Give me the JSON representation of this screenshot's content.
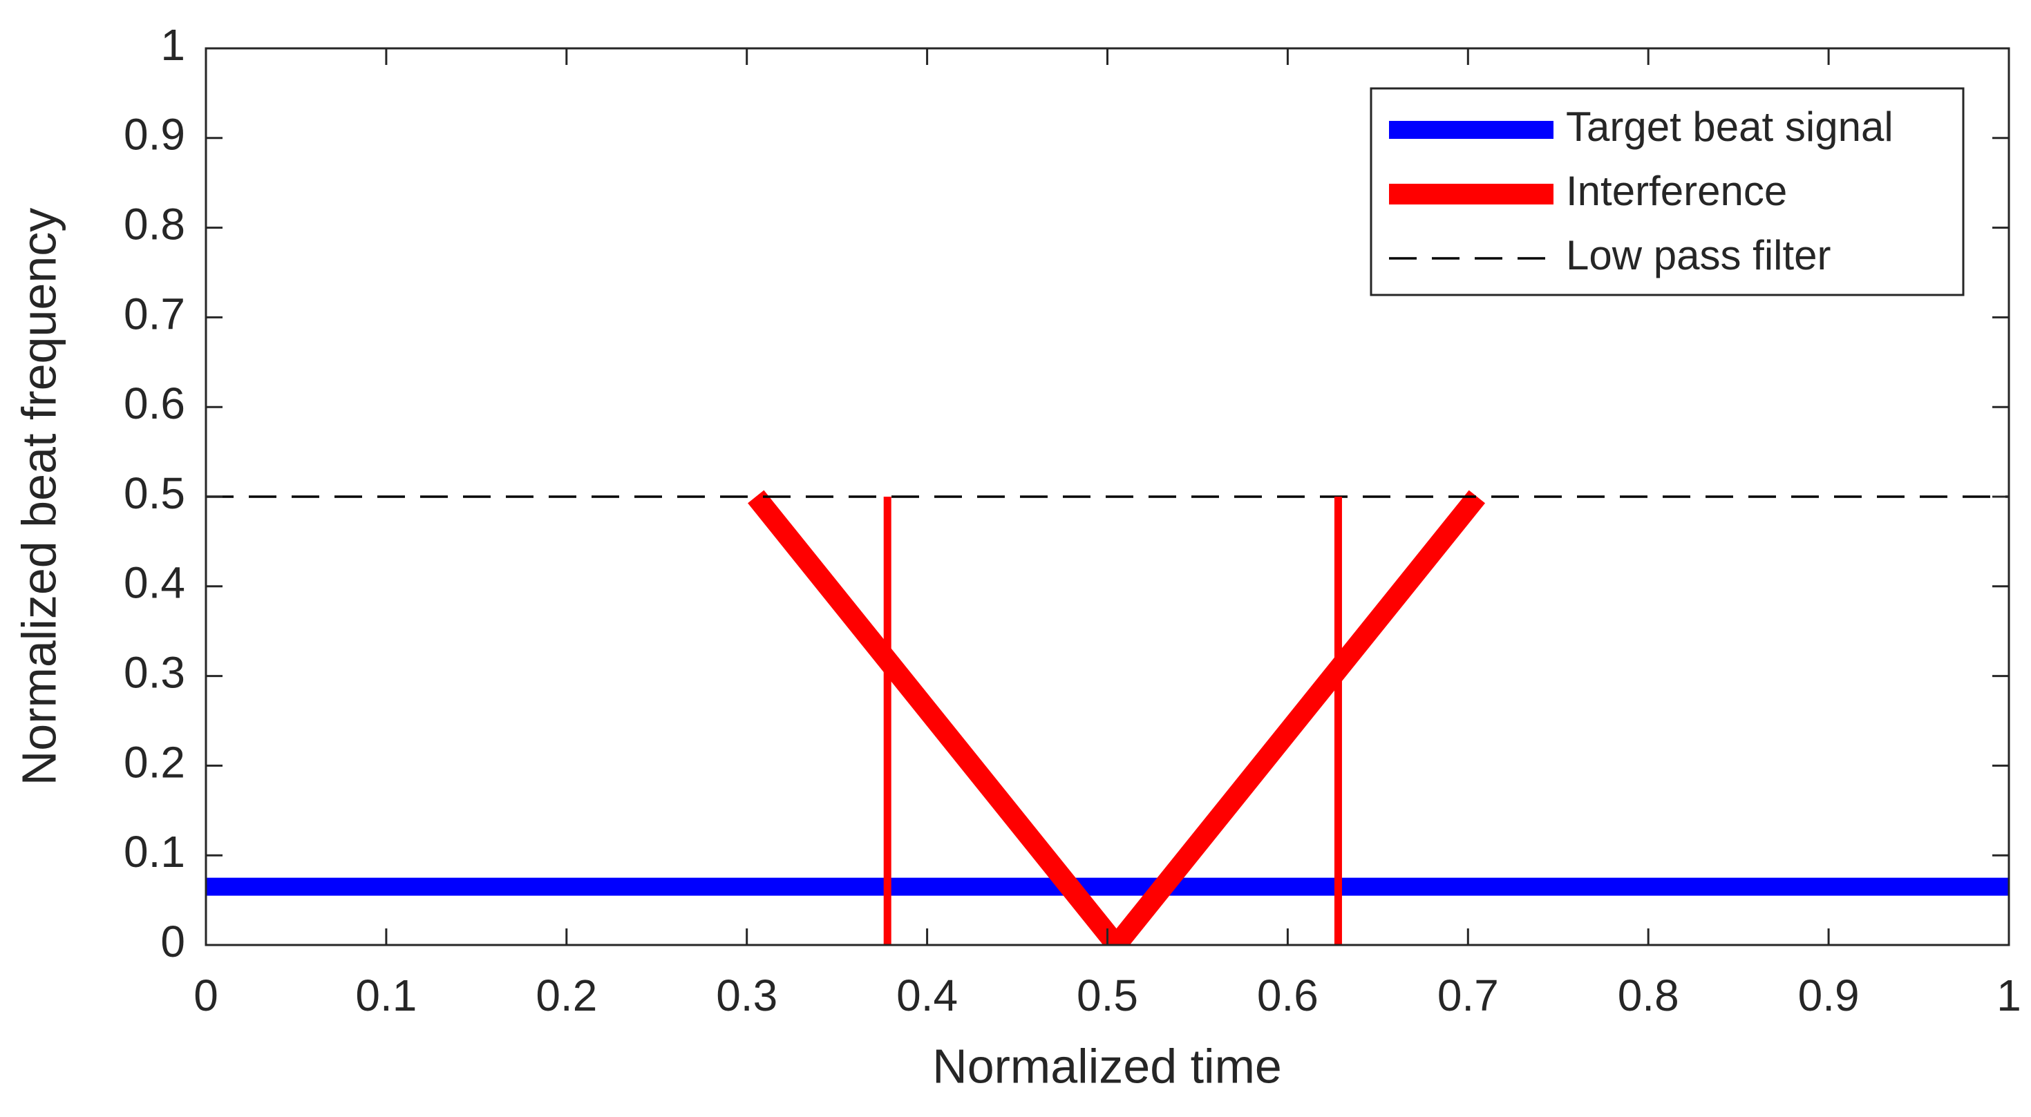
{
  "chart_data": {
    "type": "line",
    "xlabel": "Normalized time",
    "ylabel": "Normalized beat frequency",
    "xlim": [
      0,
      1
    ],
    "ylim": [
      0,
      1
    ],
    "xticks": [
      0,
      0.1,
      0.2,
      0.3,
      0.4,
      0.5,
      0.6,
      0.7,
      0.8,
      0.9,
      1
    ],
    "yticks": [
      0,
      0.1,
      0.2,
      0.3,
      0.4,
      0.5,
      0.6,
      0.7,
      0.8,
      0.9,
      1
    ],
    "legend": "upper right",
    "series": [
      {
        "name": "Target beat signal",
        "color": "#0000ff",
        "linewidth": 26,
        "x": [
          0,
          1
        ],
        "values": [
          0.065,
          0.065
        ]
      },
      {
        "name": "Interference",
        "color": "#ff0000",
        "linewidth": 30,
        "x": [
          0.305,
          0.505,
          0.705
        ],
        "values": [
          0.5,
          0,
          0.5
        ]
      },
      {
        "name": "Low pass filter",
        "color": "#000000",
        "linewidth": 3.5,
        "dash": true,
        "x": [
          0,
          1
        ],
        "values": [
          0.5,
          0.5
        ]
      },
      {
        "color": "#ff0000",
        "linewidth": 11,
        "x": [
          0.378,
          0.378,
          null,
          0.628,
          0.628
        ],
        "values": [
          0,
          0.5,
          null,
          0,
          0.5
        ]
      }
    ]
  }
}
